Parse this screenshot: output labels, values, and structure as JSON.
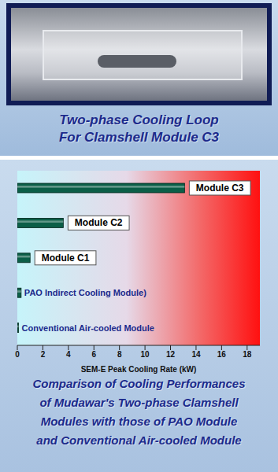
{
  "photo_caption": [
    "Two-phase Cooling Loop",
    "For Clamshell Module C3"
  ],
  "caption": [
    "Comparison of Cooling Performances",
    "of Mudawar's Two-phase Clamshell",
    "Modules with those of PAO Module",
    "and Conventional Air-cooled Module"
  ],
  "chart_data": {
    "type": "bar",
    "orientation": "horizontal",
    "categories": [
      "Module C3",
      "Module C2",
      "Module C1",
      "PAO Indirect Cooling Module)",
      "Conventional Air-cooled Module"
    ],
    "values": [
      13.1,
      3.6,
      1.0,
      0.3,
      0.1
    ],
    "color": "#0b5e47",
    "xlim": [
      0,
      19
    ],
    "xticks": [
      0,
      2,
      4,
      6,
      8,
      10,
      12,
      14,
      16,
      18
    ],
    "xlabel": "SEM-E Peak Cooling Rate (kW)",
    "grid": false,
    "tick_labels": "x"
  }
}
